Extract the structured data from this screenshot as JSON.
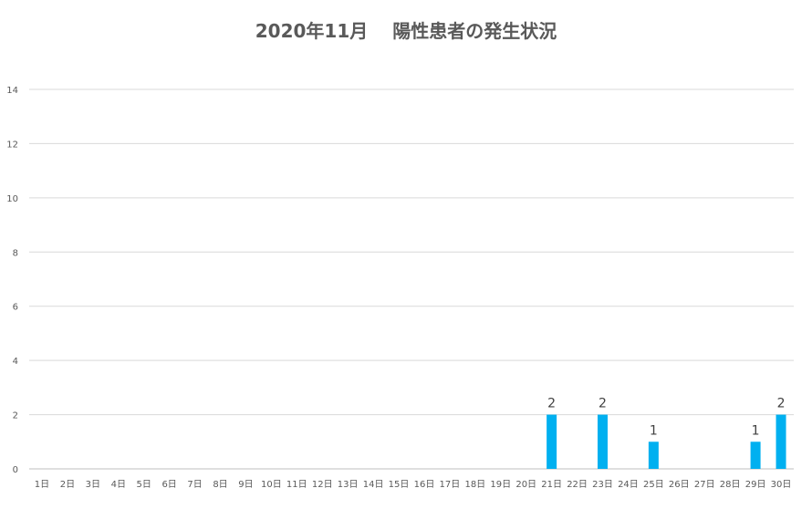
{
  "chart_data": {
    "type": "bar",
    "title": "2020年11月　 陽性患者の発生状況",
    "xlabel": "",
    "ylabel": "",
    "ylim": [
      0,
      14
    ],
    "yticks": [
      0,
      2,
      4,
      6,
      8,
      10,
      12,
      14
    ],
    "grid": true,
    "legend": "none",
    "categories": [
      "1日",
      "2日",
      "3日",
      "4日",
      "5日",
      "6日",
      "7日",
      "8日",
      "9日",
      "10日",
      "11日",
      "12日",
      "13日",
      "14日",
      "15日",
      "16日",
      "17日",
      "18日",
      "19日",
      "20日",
      "21日",
      "22日",
      "23日",
      "24日",
      "25日",
      "26日",
      "27日",
      "28日",
      "29日",
      "30日"
    ],
    "values": [
      0,
      0,
      0,
      0,
      0,
      0,
      0,
      0,
      0,
      0,
      0,
      0,
      0,
      0,
      0,
      0,
      0,
      0,
      0,
      0,
      2,
      0,
      2,
      0,
      1,
      0,
      0,
      0,
      1,
      2
    ],
    "data_labels": [
      "",
      "",
      "",
      "",
      "",
      "",
      "",
      "",
      "",
      "",
      "",
      "",
      "",
      "",
      "",
      "",
      "",
      "",
      "",
      "",
      "2",
      "",
      "2",
      "",
      "1",
      "",
      "",
      "",
      "1",
      "2"
    ],
    "colors": {
      "bar": "#00B0F0",
      "grid": "#D9D9D9",
      "axis": "#BFBFBF",
      "text": "#595959"
    }
  }
}
